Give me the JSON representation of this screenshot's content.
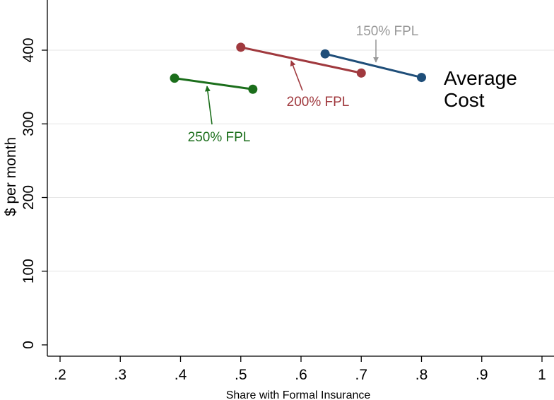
{
  "chart_data": {
    "type": "line",
    "title": "",
    "xlabel": "Share with Formal Insurance",
    "ylabel": "$ per month",
    "xlim": [
      0.2,
      1.0
    ],
    "ylim": [
      0,
      400
    ],
    "x_ticks": [
      ".2",
      ".3",
      ".4",
      ".5",
      ".6",
      ".7",
      ".8",
      ".9",
      "1"
    ],
    "y_ticks": [
      "0",
      "100",
      "200",
      "300",
      "400"
    ],
    "grid": "horizontal",
    "annotation": "Average\nCost",
    "series": [
      {
        "name": "150% FPL",
        "color": "#1f4e79",
        "points": [
          [
            0.64,
            395
          ],
          [
            0.8,
            363
          ]
        ],
        "arrow": "from label above, pointing down to line"
      },
      {
        "name": "200% FPL",
        "color": "#a0393e",
        "points": [
          [
            0.5,
            404
          ],
          [
            0.7,
            369
          ]
        ],
        "arrow": "from label below, pointing up to line"
      },
      {
        "name": "250% FPL",
        "color": "#1b6e1b",
        "points": [
          [
            0.39,
            362
          ],
          [
            0.52,
            347
          ]
        ],
        "arrow": "from label below, pointing up to line"
      }
    ]
  }
}
